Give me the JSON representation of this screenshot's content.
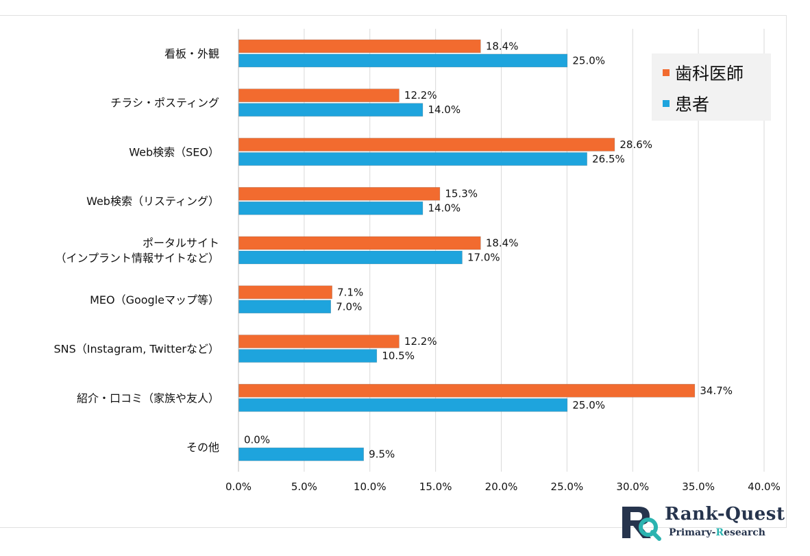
{
  "chart_data": {
    "type": "bar",
    "orientation": "horizontal",
    "categories": [
      [
        "看板・外観"
      ],
      [
        "チラシ・ポスティング"
      ],
      [
        "Web検索（SEO）"
      ],
      [
        "Web検索（リスティング）"
      ],
      [
        "ポータルサイト",
        "（インプラント情報サイトなど）"
      ],
      [
        "MEO（Googleマップ等）"
      ],
      [
        "SNS（Instagram, Twitterなど）"
      ],
      [
        "紹介・口コミ（家族や友人）"
      ],
      [
        "その他"
      ]
    ],
    "series": [
      {
        "name": "歯科医師",
        "color": "#f26b2f",
        "values": [
          18.4,
          12.2,
          28.6,
          15.3,
          18.4,
          7.1,
          12.2,
          34.7,
          0.0
        ],
        "labels": [
          "18.4%",
          "12.2%",
          "28.6%",
          "15.3%",
          "18.4%",
          "7.1%",
          "12.2%",
          "34.7%",
          "0.0%"
        ]
      },
      {
        "name": "患者",
        "color": "#1ea4dd",
        "values": [
          25.0,
          14.0,
          26.5,
          14.0,
          17.0,
          7.0,
          10.5,
          25.0,
          9.5
        ],
        "labels": [
          "25.0%",
          "14.0%",
          "26.5%",
          "14.0%",
          "17.0%",
          "7.0%",
          "10.5%",
          "25.0%",
          "9.5%"
        ]
      }
    ],
    "xlim": [
      0,
      40
    ],
    "xticks": [
      0,
      5,
      10,
      15,
      20,
      25,
      30,
      35,
      40
    ],
    "xtick_labels": [
      "0.0%",
      "5.0%",
      "10.0%",
      "15.0%",
      "20.0%",
      "25.0%",
      "30.0%",
      "35.0%",
      "40.0%"
    ],
    "grid": true,
    "legend_position": "top-right"
  },
  "legend": {
    "items": [
      {
        "label": "歯科医師",
        "color": "#f26b2f"
      },
      {
        "label": "患者",
        "color": "#1ea4dd"
      }
    ]
  },
  "brand": {
    "name": "Rank-Quest",
    "sub_prefix": "Primary-",
    "sub_highlight": "R",
    "sub_suffix": "esearch",
    "logo_icon": "rq-logo-icon",
    "accent_color": "#2bb3b0"
  }
}
